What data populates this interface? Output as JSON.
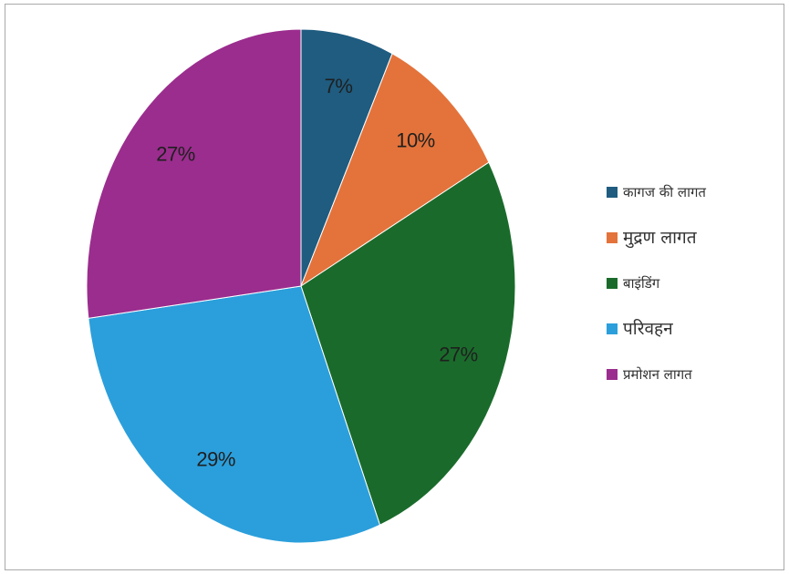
{
  "chart_data": {
    "type": "pie",
    "title": "",
    "start_angle_deg": 0,
    "direction": "clockwise",
    "slices": [
      {
        "label": "कागज की लागत",
        "value": 7,
        "value_label": "7%",
        "color": "#1f5c80"
      },
      {
        "label": "मुद्रण लागत",
        "value": 10,
        "value_label": "10%",
        "color": "#e3733b"
      },
      {
        "label": "बाइंडिंग",
        "value": 27,
        "value_label": "27%",
        "color": "#1a6b2b"
      },
      {
        "label": "परिवहन",
        "value": 29,
        "value_label": "29%",
        "color": "#2b9fdb"
      },
      {
        "label": "प्रमोशन लागत",
        "value": 27,
        "value_label": "27%",
        "color": "#9b2d8e"
      }
    ],
    "legend_position": "right"
  }
}
